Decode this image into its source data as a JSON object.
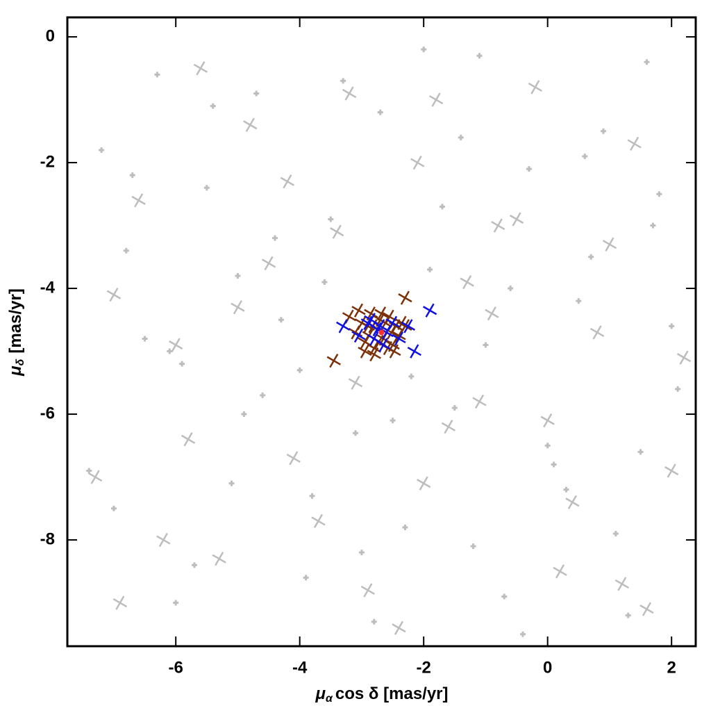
{
  "chart_data": {
    "type": "scatter",
    "xlabel": {
      "symbol": "μ",
      "subscript": "α",
      "text": "cos δ [mas/yr]"
    },
    "ylabel": {
      "symbol": "μ",
      "subscript": "δ",
      "text": "[mas/yr]"
    },
    "xlim": [
      -7.75,
      2.39
    ],
    "ylim": [
      -9.69,
      0.31
    ],
    "xticks": [
      -6,
      -4,
      -2,
      0,
      2
    ],
    "yticks": [
      0,
      -2,
      -4,
      -6,
      -8
    ],
    "series": [
      {
        "color": "#bdbdbd",
        "marker": "plus",
        "x": [
          -7.2,
          -6.8,
          -6.3,
          -5.9,
          -5.5,
          -5.1,
          -4.7,
          -4.3,
          -3.9,
          -3.5,
          -3.1,
          -2.7,
          -2.3,
          -1.9,
          -1.5,
          -1.1,
          -0.7,
          -0.3,
          0.1,
          0.5,
          0.9,
          1.3,
          1.7,
          2.1,
          -7.0,
          -6.5,
          -6.0,
          -5.4,
          -4.9,
          -4.4,
          -3.8,
          -3.3,
          -2.8,
          -2.2,
          -1.7,
          -1.2,
          -0.6,
          0.0,
          0.6,
          1.1,
          1.6,
          2.0,
          -7.4,
          -6.7,
          -5.7,
          -4.6,
          -3.6,
          -2.5,
          -1.4,
          -0.4,
          0.7,
          1.8,
          -6.1,
          -5.0,
          -3.0,
          -1.0,
          0.3,
          1.5,
          -4.0,
          -2.0
        ],
        "values": [
          -1.8,
          -3.4,
          -0.6,
          -5.2,
          -2.4,
          -7.1,
          -0.9,
          -4.5,
          -8.6,
          -2.9,
          -6.3,
          -1.2,
          -7.8,
          -3.7,
          -5.9,
          -0.3,
          -8.9,
          -2.1,
          -6.8,
          -4.2,
          -1.5,
          -9.2,
          -3.0,
          -5.6,
          -7.5,
          -4.8,
          -9.0,
          -1.1,
          -6.0,
          -3.2,
          -7.3,
          -0.7,
          -9.3,
          -5.4,
          -2.7,
          -8.1,
          -4.0,
          -6.5,
          -1.9,
          -7.9,
          -0.4,
          -4.6,
          -6.9,
          -2.2,
          -8.4,
          -5.7,
          -3.9,
          -6.1,
          -1.6,
          -9.5,
          -3.5,
          -2.5,
          -5.0,
          -3.8,
          -8.2,
          -4.9,
          -7.2,
          -6.6,
          -5.3,
          -0.2
        ]
      },
      {
        "color": "#bdbdbd",
        "marker": "cross",
        "x": [
          -7.3,
          -6.6,
          -6.0,
          -5.3,
          -4.8,
          -4.1,
          -3.4,
          -2.9,
          -2.1,
          -1.6,
          -0.9,
          -0.2,
          0.4,
          1.0,
          1.6,
          2.2,
          -7.0,
          -6.2,
          -5.6,
          -4.5,
          -3.7,
          -3.1,
          -2.4,
          -1.8,
          -1.1,
          -0.5,
          0.2,
          0.8,
          1.4,
          2.0,
          -6.9,
          -5.8,
          -4.2,
          -3.2,
          -2.0,
          -0.8,
          0.0,
          1.2,
          -5.0,
          -1.3
        ],
        "values": [
          -7.0,
          -2.6,
          -4.9,
          -8.3,
          -1.4,
          -6.7,
          -3.1,
          -8.8,
          -2.0,
          -6.2,
          -4.4,
          -0.8,
          -7.4,
          -3.3,
          -9.1,
          -5.1,
          -4.1,
          -8.0,
          -0.5,
          -3.6,
          -7.7,
          -5.5,
          -9.4,
          -1.0,
          -5.8,
          -2.9,
          -8.5,
          -4.7,
          -1.7,
          -6.9,
          -9.0,
          -6.4,
          -2.3,
          -0.9,
          -7.1,
          -3.0,
          -6.1,
          -8.7,
          -4.3,
          -3.9
        ]
      },
      {
        "color": "#7a3008",
        "marker": "cross",
        "x": [
          -3.2,
          -3.1,
          -3.0,
          -2.95,
          -2.9,
          -2.85,
          -2.8,
          -2.75,
          -2.7,
          -2.65,
          -2.6,
          -2.55,
          -2.5,
          -2.45,
          -2.4,
          -2.35,
          -2.3,
          -3.05,
          -2.88,
          -2.72,
          -2.62,
          -2.52,
          -2.82,
          -2.68,
          -2.58,
          -3.45,
          -2.3,
          -2.8,
          -2.95,
          -2.48
        ],
        "values": [
          -4.45,
          -4.7,
          -4.55,
          -4.85,
          -4.6,
          -4.4,
          -4.95,
          -4.65,
          -4.5,
          -4.8,
          -4.7,
          -4.45,
          -4.9,
          -4.6,
          -4.75,
          -4.55,
          -4.15,
          -4.35,
          -4.75,
          -4.85,
          -4.55,
          -4.7,
          -4.6,
          -4.4,
          -4.95,
          -5.15,
          -4.6,
          -5.05,
          -5.0,
          -5.0
        ]
      },
      {
        "color": "#1010e0",
        "marker": "cross",
        "x": [
          -3.3,
          -3.05,
          -2.9,
          -2.8,
          -2.75,
          -2.7,
          -2.6,
          -2.5,
          -2.4,
          -2.25,
          -2.15,
          -1.9,
          -2.65,
          -2.85
        ],
        "values": [
          -4.6,
          -4.75,
          -4.55,
          -4.8,
          -4.65,
          -4.6,
          -4.7,
          -4.55,
          -4.8,
          -4.6,
          -5.0,
          -4.35,
          -4.9,
          -4.5
        ]
      },
      {
        "color": "#ff3030",
        "marker": "dot",
        "x": [
          -2.68
        ],
        "values": [
          -4.7
        ]
      }
    ]
  }
}
